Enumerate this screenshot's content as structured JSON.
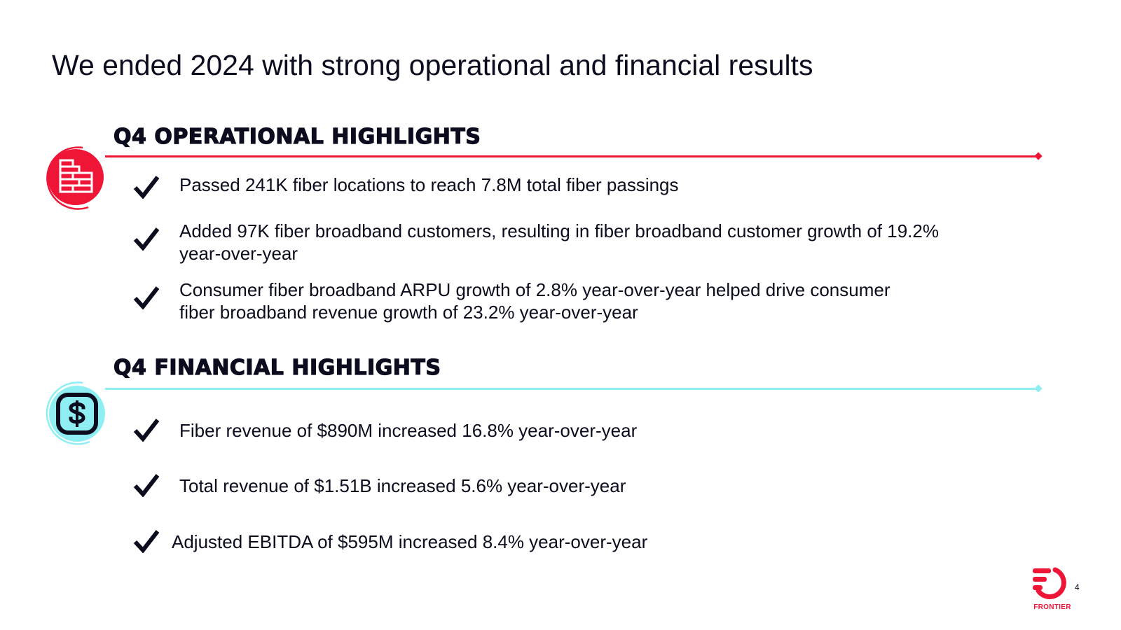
{
  "slide": {
    "title": "We ended 2024 with strong operational and financial results",
    "page_number": "4"
  },
  "sections": {
    "operational": {
      "heading": "Q4 OPERATIONAL HIGHLIGHTS",
      "icon": "brick-wall-icon",
      "accent": "#ef1537",
      "items": [
        {
          "line1": "Passed 241K fiber locations to reach 7.8M total fiber passings",
          "line2": ""
        },
        {
          "line1": "Added 97K fiber broadband customers, resulting in fiber broadband customer growth of 19.2%",
          "line2": "year-over-year"
        },
        {
          "line1": "Consumer fiber broadband ARPU growth of 2.8% year-over-year helped drive consumer",
          "line2": "fiber broadband revenue growth of 23.2% year-over-year"
        }
      ]
    },
    "financial": {
      "heading": "Q4 FINANCIAL HIGHLIGHTS",
      "icon": "dollar-icon",
      "accent": "#8eeef2",
      "items": [
        {
          "line1": "Fiber revenue of $890M increased 16.8% year-over-year"
        },
        {
          "line1": "Total revenue of $1.51B increased 5.6% year-over-year"
        },
        {
          "line1": "Adjusted EBITDA of $595M increased 8.4% year-over-year"
        }
      ]
    }
  },
  "brand": {
    "name": "FRONTIER",
    "color": "#ef1537"
  }
}
